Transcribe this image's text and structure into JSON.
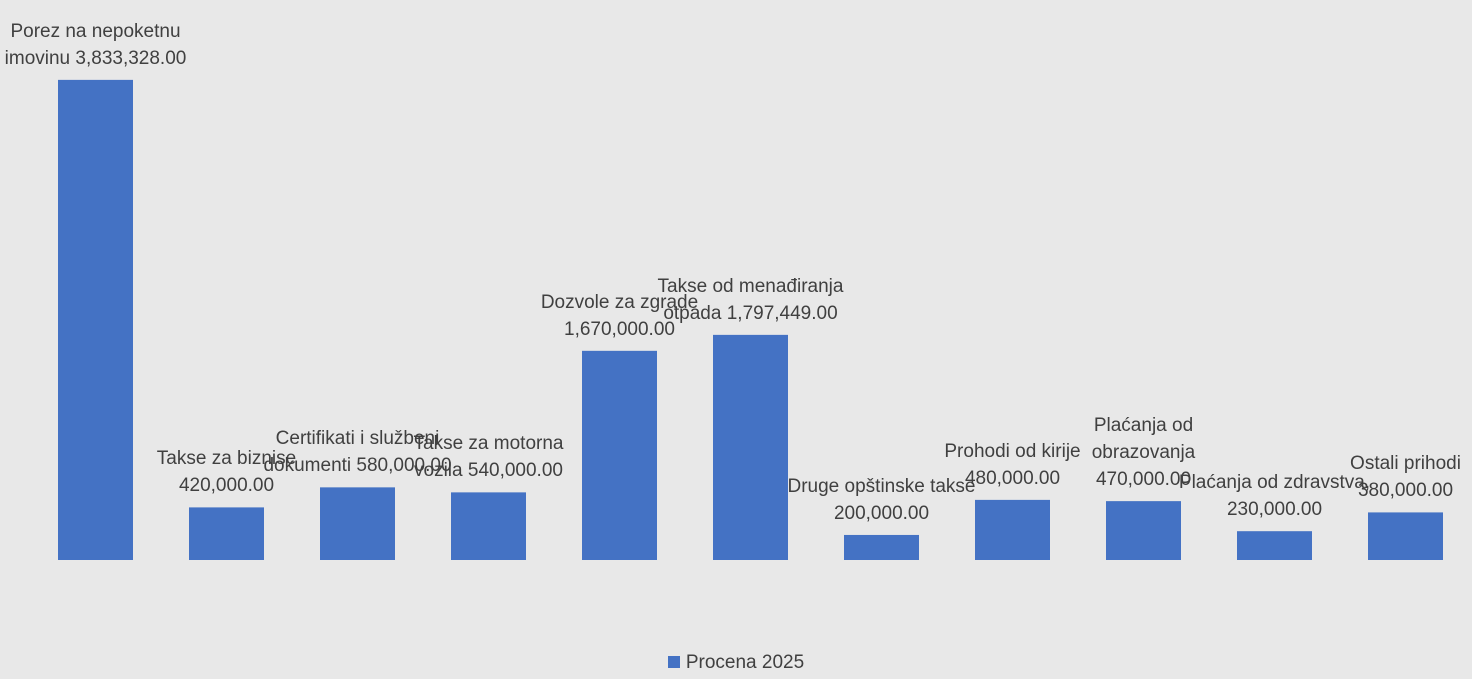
{
  "chart_data": {
    "type": "bar",
    "categories": [
      "Porez na nepoketnu imovinu",
      "Takse za biznise",
      "Certifikati i službeni dokumenti",
      "Takse za motorna vozila",
      "Dozvole za zgrade",
      "Takse od menađiranja otpada",
      "Druge opštinske takse",
      "Prohodi od kirije",
      "Plaćanja od obrazovanja",
      "Plaćanja od zdravstva,",
      "Ostali prihodi"
    ],
    "series": [
      {
        "name": "Procena 2025",
        "color": "#4472c4",
        "values": [
          3833328,
          420000,
          580000,
          540000,
          1670000,
          1797449,
          200000,
          480000,
          470000,
          230000,
          380000
        ],
        "value_labels": [
          "3,833,328.00",
          "420,000.00",
          "580,000.00",
          "540,000.00",
          "1,670,000.00",
          "1,797,449.00",
          "200,000.00",
          "480,000.00",
          "470,000.00",
          "230,000.00",
          "380,000.00"
        ]
      }
    ],
    "ylim": [
      0,
      4000000
    ],
    "legend": "bottom"
  }
}
